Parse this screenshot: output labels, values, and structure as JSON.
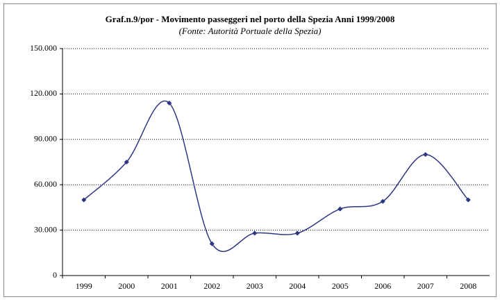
{
  "chart_data": {
    "type": "line",
    "title": "Graf.n.9/por - Movimento passeggeri nel porto della Spezia Anni 1999/2008",
    "subtitle": "(Fonte: Autorità Portuale della Spezia)",
    "categories": [
      "1999",
      "2000",
      "2001",
      "2002",
      "2003",
      "2004",
      "2005",
      "2006",
      "2007",
      "2008"
    ],
    "values": [
      50000,
      75000,
      114000,
      21000,
      28000,
      28000,
      44000,
      49000,
      80000,
      50000
    ],
    "color": "#2e3582",
    "ylim": [
      0,
      150000
    ],
    "yticks": [
      0,
      {
        "value": 30000,
        "label": "30.000"
      },
      {
        "value": 60000,
        "label": "60.000"
      },
      {
        "value": 90000,
        "label": "90.000"
      },
      {
        "value": 120000,
        "label": "120.000"
      },
      {
        "value": 150000,
        "label": "150.000"
      }
    ],
    "grid": true,
    "smooth": true
  }
}
